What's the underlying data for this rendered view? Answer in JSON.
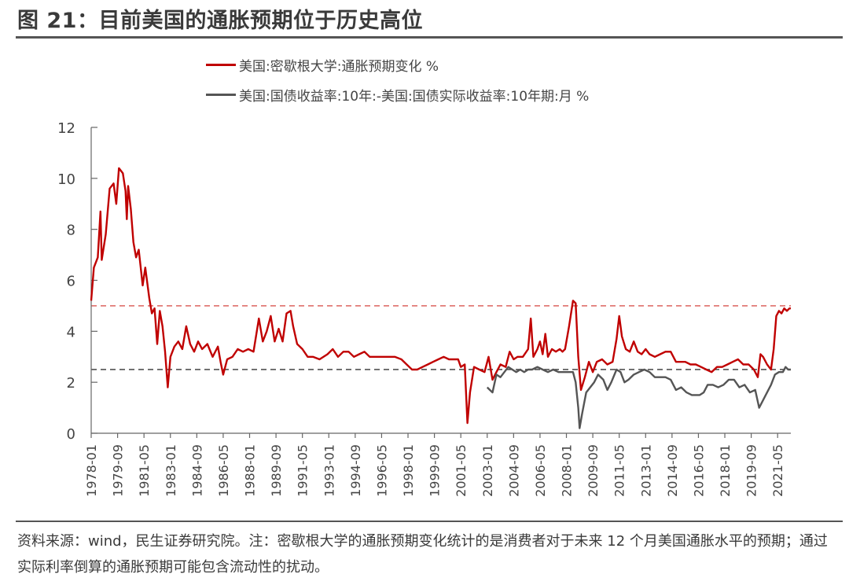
{
  "figure_title": "图 21：目前美国的通胀预期位于历史高位",
  "source_note": "资料来源：wind，民生证券研究院。注：密歇根大学的通胀预期变化统计的是消费者对于未来 12 个月美国通胀水平的预期；通过实际利率倒算的通胀预期可能包含流动性的扰动。",
  "colors": {
    "series_red": "#c00000",
    "series_gray": "#555555",
    "ref_red": "#d9534f",
    "ref_gray": "#333333",
    "axis": "#666666",
    "title_rule": "#555555"
  },
  "chart_data": {
    "type": "line",
    "title": "",
    "xlabel": "",
    "ylabel": "",
    "x_range": [
      "1978-01",
      "2022-03"
    ],
    "ylim": [
      0,
      12
    ],
    "y_ticks": [
      "0",
      "2",
      "4",
      "6",
      "8",
      "10",
      "12"
    ],
    "x_tick_labels": [
      "1978-01",
      "1979-09",
      "1981-05",
      "1983-01",
      "1984-09",
      "1986-05",
      "1988-01",
      "1989-09",
      "1991-05",
      "1993-01",
      "1994-09",
      "1996-05",
      "1998-01",
      "1999-09",
      "2001-05",
      "2003-01",
      "2004-09",
      "2006-05",
      "2008-01",
      "2009-09",
      "2011-05",
      "2013-01",
      "2014-09",
      "2016-05",
      "2018-01",
      "2019-09",
      "2021-05"
    ],
    "grid": false,
    "legend_position": "top",
    "reference_lines": [
      {
        "y": 5.0,
        "style": "dashed",
        "color": "#d9534f"
      },
      {
        "y": 2.5,
        "style": "dashed",
        "color": "#333333"
      }
    ],
    "series": [
      {
        "name": "美国:密歇根大学:通胀预期变化 %",
        "color": "#c00000",
        "points": [
          [
            "1978-01",
            5.2
          ],
          [
            "1978-03",
            6.5
          ],
          [
            "1978-06",
            6.9
          ],
          [
            "1978-08",
            8.7
          ],
          [
            "1978-09",
            6.8
          ],
          [
            "1978-12",
            7.8
          ],
          [
            "1979-03",
            9.6
          ],
          [
            "1979-06",
            9.8
          ],
          [
            "1979-08",
            9.0
          ],
          [
            "1979-10",
            10.4
          ],
          [
            "1980-01",
            10.2
          ],
          [
            "1980-03",
            9.5
          ],
          [
            "1980-04",
            8.4
          ],
          [
            "1980-05",
            9.7
          ],
          [
            "1980-07",
            8.8
          ],
          [
            "1980-09",
            7.5
          ],
          [
            "1980-11",
            6.9
          ],
          [
            "1981-01",
            7.2
          ],
          [
            "1981-04",
            5.8
          ],
          [
            "1981-06",
            6.5
          ],
          [
            "1981-09",
            5.3
          ],
          [
            "1981-11",
            4.7
          ],
          [
            "1982-01",
            4.9
          ],
          [
            "1982-03",
            3.5
          ],
          [
            "1982-05",
            4.8
          ],
          [
            "1982-07",
            4.2
          ],
          [
            "1982-09",
            3.2
          ],
          [
            "1982-11",
            1.8
          ],
          [
            "1983-01",
            3.0
          ],
          [
            "1983-04",
            3.4
          ],
          [
            "1983-07",
            3.6
          ],
          [
            "1983-10",
            3.3
          ],
          [
            "1984-01",
            4.2
          ],
          [
            "1984-04",
            3.5
          ],
          [
            "1984-07",
            3.2
          ],
          [
            "1984-10",
            3.6
          ],
          [
            "1985-01",
            3.3
          ],
          [
            "1985-05",
            3.5
          ],
          [
            "1985-09",
            3.0
          ],
          [
            "1986-01",
            3.4
          ],
          [
            "1986-03",
            2.8
          ],
          [
            "1986-05",
            2.3
          ],
          [
            "1986-08",
            2.9
          ],
          [
            "1986-12",
            3.0
          ],
          [
            "1987-04",
            3.3
          ],
          [
            "1987-08",
            3.2
          ],
          [
            "1987-12",
            3.3
          ],
          [
            "1988-04",
            3.2
          ],
          [
            "1988-08",
            4.5
          ],
          [
            "1988-11",
            3.6
          ],
          [
            "1989-02",
            4.0
          ],
          [
            "1989-05",
            4.6
          ],
          [
            "1989-08",
            3.6
          ],
          [
            "1989-11",
            4.1
          ],
          [
            "1990-02",
            3.6
          ],
          [
            "1990-05",
            4.7
          ],
          [
            "1990-08",
            4.8
          ],
          [
            "1990-10",
            4.2
          ],
          [
            "1991-01",
            3.5
          ],
          [
            "1991-05",
            3.3
          ],
          [
            "1991-09",
            3.0
          ],
          [
            "1992-01",
            3.0
          ],
          [
            "1992-06",
            2.9
          ],
          [
            "1992-12",
            3.1
          ],
          [
            "1993-04",
            3.3
          ],
          [
            "1993-08",
            3.0
          ],
          [
            "1993-12",
            3.2
          ],
          [
            "1994-04",
            3.2
          ],
          [
            "1994-08",
            3.0
          ],
          [
            "1994-12",
            3.1
          ],
          [
            "1995-04",
            3.2
          ],
          [
            "1995-08",
            3.0
          ],
          [
            "1995-12",
            3.0
          ],
          [
            "1996-05",
            3.0
          ],
          [
            "1996-10",
            3.0
          ],
          [
            "1997-03",
            3.0
          ],
          [
            "1997-08",
            2.9
          ],
          [
            "1997-12",
            2.7
          ],
          [
            "1998-04",
            2.5
          ],
          [
            "1998-08",
            2.5
          ],
          [
            "1998-12",
            2.6
          ],
          [
            "1999-04",
            2.7
          ],
          [
            "1999-08",
            2.8
          ],
          [
            "1999-12",
            2.9
          ],
          [
            "2000-04",
            3.0
          ],
          [
            "2000-08",
            2.9
          ],
          [
            "2000-12",
            2.9
          ],
          [
            "2001-03",
            2.9
          ],
          [
            "2001-05",
            2.6
          ],
          [
            "2001-08",
            2.7
          ],
          [
            "2001-10",
            0.4
          ],
          [
            "2001-12",
            1.6
          ],
          [
            "2002-03",
            2.6
          ],
          [
            "2002-07",
            2.5
          ],
          [
            "2002-11",
            2.4
          ],
          [
            "2003-02",
            3.0
          ],
          [
            "2003-05",
            2.1
          ],
          [
            "2003-08",
            2.4
          ],
          [
            "2003-11",
            2.7
          ],
          [
            "2004-03",
            2.6
          ],
          [
            "2004-06",
            3.2
          ],
          [
            "2004-09",
            2.9
          ],
          [
            "2004-12",
            3.0
          ],
          [
            "2005-04",
            3.0
          ],
          [
            "2005-08",
            3.3
          ],
          [
            "2005-10",
            4.5
          ],
          [
            "2005-12",
            3.0
          ],
          [
            "2006-03",
            3.3
          ],
          [
            "2006-05",
            3.6
          ],
          [
            "2006-07",
            3.1
          ],
          [
            "2006-09",
            3.9
          ],
          [
            "2006-11",
            3.0
          ],
          [
            "2007-02",
            3.3
          ],
          [
            "2007-05",
            3.2
          ],
          [
            "2007-08",
            3.3
          ],
          [
            "2007-10",
            3.2
          ],
          [
            "2007-12",
            3.3
          ],
          [
            "2008-03",
            4.2
          ],
          [
            "2008-06",
            5.2
          ],
          [
            "2008-08",
            5.1
          ],
          [
            "2008-10",
            3.0
          ],
          [
            "2008-12",
            1.7
          ],
          [
            "2009-03",
            2.2
          ],
          [
            "2009-06",
            2.8
          ],
          [
            "2009-09",
            2.4
          ],
          [
            "2009-12",
            2.8
          ],
          [
            "2010-04",
            2.9
          ],
          [
            "2010-08",
            2.7
          ],
          [
            "2010-12",
            2.8
          ],
          [
            "2011-03",
            3.7
          ],
          [
            "2011-05",
            4.6
          ],
          [
            "2011-07",
            3.8
          ],
          [
            "2011-10",
            3.3
          ],
          [
            "2012-01",
            3.2
          ],
          [
            "2012-04",
            3.6
          ],
          [
            "2012-07",
            3.2
          ],
          [
            "2012-10",
            3.1
          ],
          [
            "2013-01",
            3.3
          ],
          [
            "2013-04",
            3.1
          ],
          [
            "2013-08",
            3.0
          ],
          [
            "2013-12",
            3.1
          ],
          [
            "2014-04",
            3.2
          ],
          [
            "2014-08",
            3.2
          ],
          [
            "2014-12",
            2.8
          ],
          [
            "2015-03",
            2.8
          ],
          [
            "2015-07",
            2.8
          ],
          [
            "2015-11",
            2.7
          ],
          [
            "2016-03",
            2.7
          ],
          [
            "2016-07",
            2.6
          ],
          [
            "2016-11",
            2.5
          ],
          [
            "2017-03",
            2.4
          ],
          [
            "2017-07",
            2.6
          ],
          [
            "2017-11",
            2.6
          ],
          [
            "2018-03",
            2.7
          ],
          [
            "2018-07",
            2.8
          ],
          [
            "2018-11",
            2.9
          ],
          [
            "2019-03",
            2.7
          ],
          [
            "2019-07",
            2.7
          ],
          [
            "2019-11",
            2.5
          ],
          [
            "2020-02",
            2.2
          ],
          [
            "2020-04",
            3.1
          ],
          [
            "2020-06",
            3.0
          ],
          [
            "2020-09",
            2.7
          ],
          [
            "2020-12",
            2.5
          ],
          [
            "2021-02",
            3.3
          ],
          [
            "2021-04",
            4.6
          ],
          [
            "2021-06",
            4.8
          ],
          [
            "2021-08",
            4.7
          ],
          [
            "2021-10",
            4.9
          ],
          [
            "2021-12",
            4.8
          ],
          [
            "2022-02",
            4.9
          ],
          [
            "2022-03",
            4.9
          ]
        ]
      },
      {
        "name": "美国:国债收益率:10年:-美国:国债实际收益率:10年期:月 %",
        "color": "#555555",
        "points": [
          [
            "2003-01",
            1.8
          ],
          [
            "2003-03",
            1.7
          ],
          [
            "2003-05",
            1.6
          ],
          [
            "2003-08",
            2.3
          ],
          [
            "2003-11",
            2.2
          ],
          [
            "2004-02",
            2.4
          ],
          [
            "2004-05",
            2.6
          ],
          [
            "2004-08",
            2.5
          ],
          [
            "2004-11",
            2.4
          ],
          [
            "2005-02",
            2.5
          ],
          [
            "2005-05",
            2.4
          ],
          [
            "2005-08",
            2.5
          ],
          [
            "2005-11",
            2.5
          ],
          [
            "2006-03",
            2.6
          ],
          [
            "2006-07",
            2.5
          ],
          [
            "2006-11",
            2.4
          ],
          [
            "2007-03",
            2.5
          ],
          [
            "2007-07",
            2.4
          ],
          [
            "2007-11",
            2.4
          ],
          [
            "2008-03",
            2.4
          ],
          [
            "2008-06",
            2.4
          ],
          [
            "2008-08",
            2.0
          ],
          [
            "2008-10",
            1.0
          ],
          [
            "2008-11",
            0.2
          ],
          [
            "2009-01",
            0.8
          ],
          [
            "2009-04",
            1.6
          ],
          [
            "2009-07",
            1.8
          ],
          [
            "2009-10",
            2.0
          ],
          [
            "2010-01",
            2.3
          ],
          [
            "2010-05",
            2.1
          ],
          [
            "2010-08",
            1.7
          ],
          [
            "2010-11",
            2.0
          ],
          [
            "2011-03",
            2.5
          ],
          [
            "2011-06",
            2.4
          ],
          [
            "2011-09",
            2.0
          ],
          [
            "2011-12",
            2.1
          ],
          [
            "2012-04",
            2.3
          ],
          [
            "2012-08",
            2.4
          ],
          [
            "2012-12",
            2.5
          ],
          [
            "2013-04",
            2.4
          ],
          [
            "2013-08",
            2.2
          ],
          [
            "2013-12",
            2.2
          ],
          [
            "2014-04",
            2.2
          ],
          [
            "2014-08",
            2.1
          ],
          [
            "2014-12",
            1.7
          ],
          [
            "2015-04",
            1.8
          ],
          [
            "2015-08",
            1.6
          ],
          [
            "2015-12",
            1.5
          ],
          [
            "2016-03",
            1.5
          ],
          [
            "2016-06",
            1.5
          ],
          [
            "2016-09",
            1.6
          ],
          [
            "2016-12",
            1.9
          ],
          [
            "2017-04",
            1.9
          ],
          [
            "2017-08",
            1.8
          ],
          [
            "2017-12",
            1.9
          ],
          [
            "2018-04",
            2.1
          ],
          [
            "2018-08",
            2.1
          ],
          [
            "2018-12",
            1.8
          ],
          [
            "2019-04",
            1.9
          ],
          [
            "2019-08",
            1.6
          ],
          [
            "2019-12",
            1.7
          ],
          [
            "2020-03",
            1.0
          ],
          [
            "2020-06",
            1.3
          ],
          [
            "2020-09",
            1.6
          ],
          [
            "2020-12",
            1.9
          ],
          [
            "2021-03",
            2.3
          ],
          [
            "2021-06",
            2.4
          ],
          [
            "2021-09",
            2.4
          ],
          [
            "2021-11",
            2.6
          ],
          [
            "2022-01",
            2.5
          ],
          [
            "2022-03",
            2.5
          ]
        ]
      }
    ]
  }
}
